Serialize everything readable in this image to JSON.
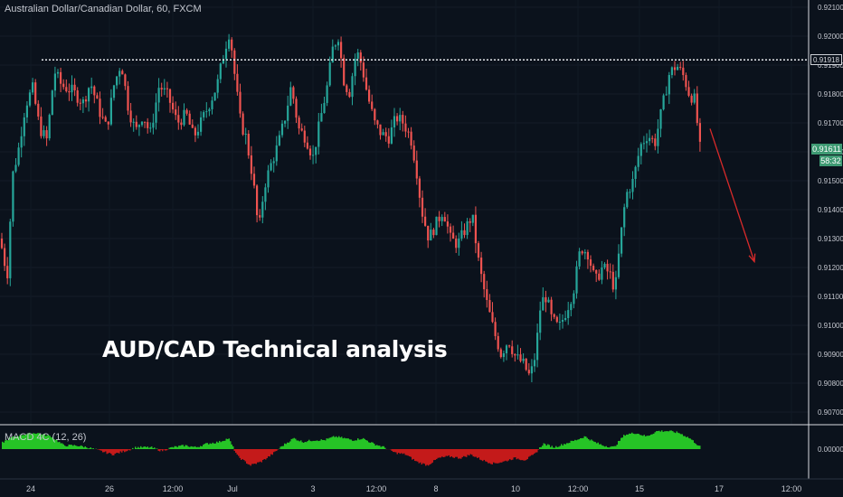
{
  "header": {
    "symbol": "Australian Dollar/Canadian Dollar, 60, FXCM"
  },
  "overlay": {
    "title": "AUD/CAD Technical analysis"
  },
  "price_tags": {
    "level": "0.91918",
    "last": "0.91611",
    "countdown": "58:32"
  },
  "indicator": {
    "label": "MACD 4C (12, 26)",
    "zero_label": "0.00000"
  },
  "colors": {
    "background": "#0b121c",
    "up": "#26a69a",
    "down": "#ef5350",
    "histogram_up": "#26c426",
    "histogram_down": "#c41a1a",
    "arrow": "#d92a2a"
  },
  "chart_data": {
    "type": "candlestick",
    "title": "",
    "price_axis": {
      "ticks": [
        "0.92100",
        "0.92000",
        "0.91900",
        "0.91800",
        "0.91700",
        "0.91600",
        "0.91500",
        "0.91400",
        "0.91300",
        "0.91200",
        "0.91100",
        "0.91000",
        "0.90900",
        "0.90800",
        "0.90700"
      ],
      "range": [
        0.9066,
        0.9213
      ]
    },
    "time_axis": {
      "labels": [
        "24",
        "26",
        "12:00",
        "Jul",
        "3",
        "12:00",
        "8",
        "10",
        "12:00",
        "15",
        "17",
        "12:00"
      ]
    },
    "resistance_level": 0.91918,
    "last_price": 0.91611,
    "projection_arrow": {
      "from": 0.9168,
      "to": 0.9122,
      "direction": "down"
    },
    "price_path": [
      [
        0,
        0.913
      ],
      [
        8,
        0.9117
      ],
      [
        14,
        0.9152
      ],
      [
        20,
        0.916
      ],
      [
        28,
        0.9176
      ],
      [
        36,
        0.9182
      ],
      [
        44,
        0.9168
      ],
      [
        52,
        0.9164
      ],
      [
        60,
        0.9188
      ],
      [
        68,
        0.9183
      ],
      [
        80,
        0.9181
      ],
      [
        92,
        0.9177
      ],
      [
        100,
        0.9184
      ],
      [
        110,
        0.9174
      ],
      [
        118,
        0.9168
      ],
      [
        126,
        0.9183
      ],
      [
        134,
        0.9191
      ],
      [
        142,
        0.9175
      ],
      [
        150,
        0.9167
      ],
      [
        158,
        0.9173
      ],
      [
        166,
        0.9166
      ],
      [
        176,
        0.9183
      ],
      [
        186,
        0.9179
      ],
      [
        196,
        0.917
      ],
      [
        206,
        0.9173
      ],
      [
        214,
        0.9165
      ],
      [
        222,
        0.917
      ],
      [
        232,
        0.9177
      ],
      [
        240,
        0.9183
      ],
      [
        248,
        0.9195
      ],
      [
        254,
        0.9202
      ],
      [
        260,
        0.9185
      ],
      [
        266,
        0.917
      ],
      [
        272,
        0.9165
      ],
      [
        280,
        0.915
      ],
      [
        286,
        0.9132
      ],
      [
        292,
        0.9148
      ],
      [
        300,
        0.9156
      ],
      [
        308,
        0.9163
      ],
      [
        316,
        0.9173
      ],
      [
        322,
        0.9183
      ],
      [
        330,
        0.9168
      ],
      [
        338,
        0.9165
      ],
      [
        346,
        0.9158
      ],
      [
        354,
        0.9171
      ],
      [
        362,
        0.9183
      ],
      [
        368,
        0.9196
      ],
      [
        374,
        0.92
      ],
      [
        380,
        0.9185
      ],
      [
        386,
        0.918
      ],
      [
        394,
        0.9195
      ],
      [
        400,
        0.919
      ],
      [
        406,
        0.918
      ],
      [
        414,
        0.917
      ],
      [
        422,
        0.9166
      ],
      [
        430,
        0.9165
      ],
      [
        438,
        0.9172
      ],
      [
        446,
        0.917
      ],
      [
        454,
        0.9165
      ],
      [
        460,
        0.9155
      ],
      [
        466,
        0.914
      ],
      [
        474,
        0.913
      ],
      [
        482,
        0.9135
      ],
      [
        490,
        0.914
      ],
      [
        498,
        0.913
      ],
      [
        506,
        0.9128
      ],
      [
        514,
        0.9133
      ],
      [
        522,
        0.9138
      ],
      [
        530,
        0.912
      ],
      [
        538,
        0.9108
      ],
      [
        546,
        0.9098
      ],
      [
        554,
        0.909
      ],
      [
        562,
        0.9095
      ],
      [
        570,
        0.9089
      ],
      [
        578,
        0.9087
      ],
      [
        586,
        0.9082
      ],
      [
        592,
        0.909
      ],
      [
        598,
        0.9108
      ],
      [
        604,
        0.911
      ],
      [
        610,
        0.9102
      ],
      [
        618,
        0.9099
      ],
      [
        626,
        0.9105
      ],
      [
        634,
        0.9112
      ],
      [
        642,
        0.9127
      ],
      [
        650,
        0.9125
      ],
      [
        658,
        0.9115
      ],
      [
        666,
        0.912
      ],
      [
        674,
        0.9118
      ],
      [
        680,
        0.9112
      ],
      [
        686,
        0.913
      ],
      [
        692,
        0.9145
      ],
      [
        700,
        0.915
      ],
      [
        708,
        0.9162
      ],
      [
        716,
        0.9166
      ],
      [
        724,
        0.9163
      ],
      [
        732,
        0.9175
      ],
      [
        740,
        0.9187
      ],
      [
        748,
        0.919
      ],
      [
        756,
        0.9186
      ],
      [
        762,
        0.918
      ],
      [
        768,
        0.9178
      ],
      [
        774,
        0.9161
      ]
    ],
    "macd_histogram": [
      [
        0,
        0.3
      ],
      [
        10,
        0.6
      ],
      [
        24,
        0.8
      ],
      [
        40,
        0.9
      ],
      [
        56,
        0.7
      ],
      [
        70,
        0.2
      ],
      [
        84,
        0.2
      ],
      [
        96,
        0.1
      ],
      [
        110,
        -0.1
      ],
      [
        124,
        -0.3
      ],
      [
        138,
        -0.1
      ],
      [
        150,
        0.1
      ],
      [
        166,
        0.1
      ],
      [
        178,
        -0.1
      ],
      [
        190,
        0.1
      ],
      [
        204,
        0.2
      ],
      [
        216,
        0.1
      ],
      [
        228,
        0.3
      ],
      [
        242,
        0.4
      ],
      [
        252,
        0.6
      ],
      [
        262,
        -0.4
      ],
      [
        276,
        -0.9
      ],
      [
        288,
        -0.7
      ],
      [
        300,
        -0.3
      ],
      [
        312,
        0.2
      ],
      [
        324,
        0.6
      ],
      [
        334,
        0.4
      ],
      [
        346,
        0.5
      ],
      [
        358,
        0.5
      ],
      [
        370,
        0.7
      ],
      [
        380,
        0.6
      ],
      [
        390,
        0.5
      ],
      [
        400,
        0.6
      ],
      [
        412,
        0.3
      ],
      [
        424,
        0.1
      ],
      [
        436,
        -0.2
      ],
      [
        448,
        -0.3
      ],
      [
        460,
        -0.7
      ],
      [
        472,
        -0.9
      ],
      [
        484,
        -0.5
      ],
      [
        496,
        -0.4
      ],
      [
        508,
        -0.5
      ],
      [
        520,
        -0.3
      ],
      [
        532,
        -0.6
      ],
      [
        544,
        -0.8
      ],
      [
        556,
        -0.7
      ],
      [
        568,
        -0.5
      ],
      [
        580,
        -0.6
      ],
      [
        590,
        -0.3
      ],
      [
        600,
        0.3
      ],
      [
        612,
        0.1
      ],
      [
        624,
        0.3
      ],
      [
        636,
        0.5
      ],
      [
        646,
        0.7
      ],
      [
        656,
        0.4
      ],
      [
        666,
        0.2
      ],
      [
        678,
        0.1
      ],
      [
        690,
        0.8
      ],
      [
        702,
        0.9
      ],
      [
        714,
        0.7
      ],
      [
        726,
        1.0
      ],
      [
        738,
        1.0
      ],
      [
        750,
        0.9
      ],
      [
        762,
        0.6
      ],
      [
        774,
        0.1
      ]
    ]
  }
}
